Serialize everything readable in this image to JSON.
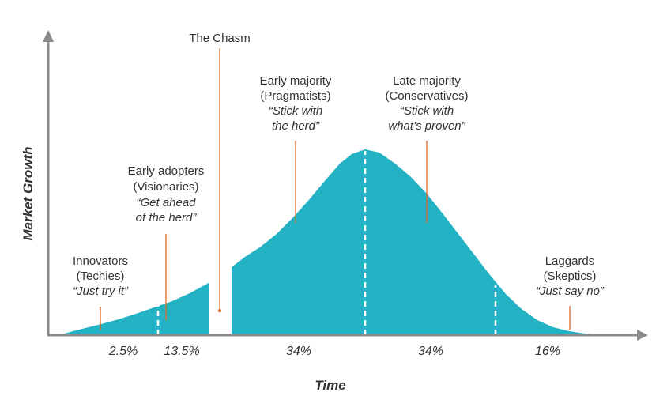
{
  "diagram": {
    "curve_color": "#22b2c4",
    "pointer_color": "#d86a2e",
    "axis_color": "#8a8a8a",
    "x_axis_title": "Time",
    "y_axis_title": "Market Growth",
    "chasm": {
      "title": "The Chasm"
    },
    "segments": [
      {
        "group": "Innovators",
        "persona": "(Techies)",
        "quote_lines": [
          "“Just try it”"
        ],
        "share": "2.5%"
      },
      {
        "group": "Early adopters",
        "persona": "(Visionaries)",
        "quote_lines": [
          "“Get ahead",
          "of the herd”"
        ],
        "share": "13.5%"
      },
      {
        "group": "Early majority",
        "persona": "(Pragmatists)",
        "quote_lines": [
          "“Stick with",
          "the herd”"
        ],
        "share": "34%"
      },
      {
        "group": "Late majority",
        "persona": "(Conservatives)",
        "quote_lines": [
          "“Stick with",
          "what’s proven”"
        ],
        "share": "34%"
      },
      {
        "group": "Laggards",
        "persona": "(Skeptics)",
        "quote_lines": [
          "“Just say no”"
        ],
        "share": "16%"
      }
    ]
  }
}
